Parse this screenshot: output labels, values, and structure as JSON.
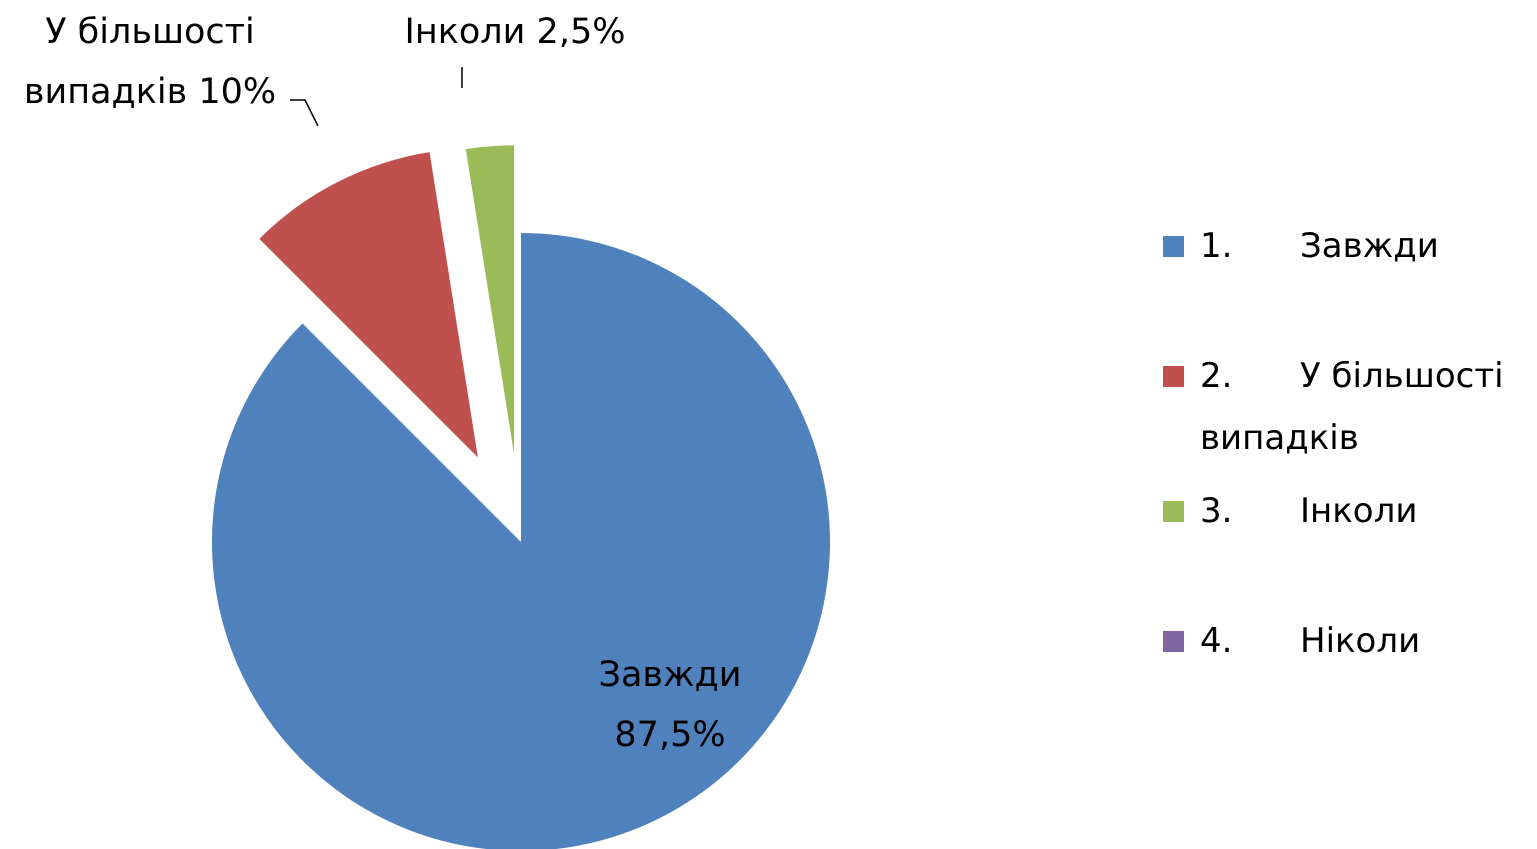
{
  "chart_data": {
    "type": "pie",
    "categories": [
      "1.\tЗавжди",
      "2.\tУ більшості випадків",
      "3.\tІнколи",
      "4.\tНіколи"
    ],
    "label_names": [
      "Завжди",
      "У більшості випадків",
      "Інколи",
      null
    ],
    "values": [
      87.5,
      10,
      2.5,
      0
    ],
    "value_labels": [
      "87,5%",
      "10%",
      "2,5%",
      null
    ],
    "colors": [
      "#4f81bd",
      "#c0504d",
      "#9bbb59",
      "#8064a2"
    ],
    "legend": "right"
  }
}
